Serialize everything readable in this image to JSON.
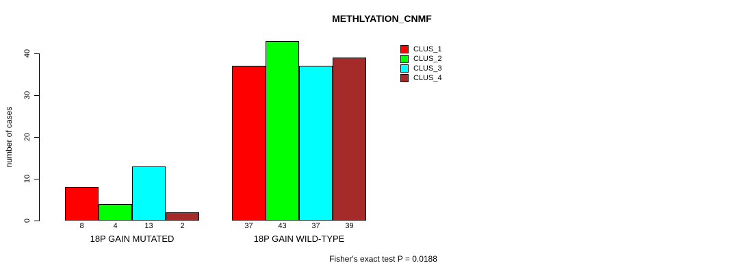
{
  "chart_data": {
    "type": "bar",
    "title": "METHLYATION_CNMF",
    "ylabel": "number of cases",
    "xlabel": "",
    "ylim": [
      0,
      45
    ],
    "yticks": [
      0,
      10,
      20,
      30,
      40
    ],
    "grid": false,
    "legend_position": "top-right",
    "bar_value_labels": true,
    "categories": [
      "18P GAIN MUTATED",
      "18P GAIN WILD-TYPE"
    ],
    "series": [
      {
        "name": "CLUS_1",
        "color": "#FF0000",
        "values": [
          8,
          37
        ]
      },
      {
        "name": "CLUS_2",
        "color": "#00FF00",
        "values": [
          4,
          43
        ]
      },
      {
        "name": "CLUS_3",
        "color": "#00FFFF",
        "values": [
          13,
          37
        ]
      },
      {
        "name": "CLUS_4",
        "color": "#A52A2A",
        "values": [
          2,
          39
        ]
      }
    ],
    "annotation": "Fisher's exact test P = 0.0188"
  }
}
